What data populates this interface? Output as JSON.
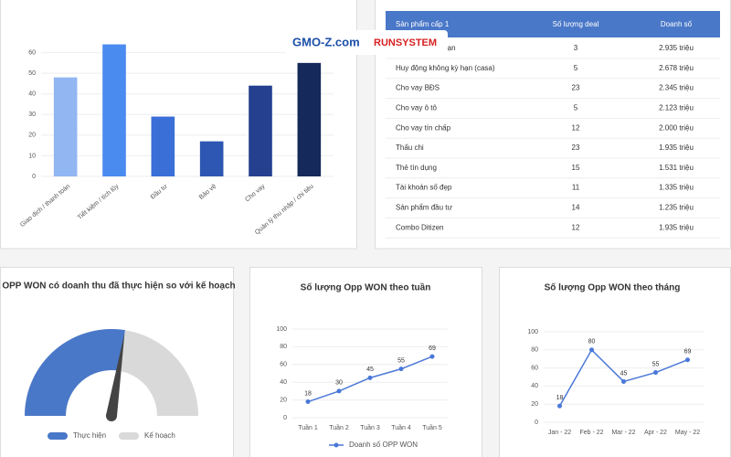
{
  "chart_data": [
    {
      "type": "bar",
      "categories": [
        "Giao dịch / thanh toán",
        "Tiết kiệm / tích lũy",
        "Đầu tư",
        "Bảo vệ",
        "Cho vay",
        "Quản lý thu nhập / chi tiêu"
      ],
      "values": [
        48,
        64,
        29,
        17,
        44,
        55
      ],
      "colors": [
        "#92b6f2",
        "#4a8bf0",
        "#3a6fd8",
        "#2d57b2",
        "#24408f",
        "#15295a"
      ],
      "ylim": [
        0,
        70
      ],
      "yticks": [
        0,
        10,
        20,
        30,
        40,
        50,
        60
      ],
      "grid": true
    },
    {
      "type": "gauge",
      "title": "OPP WON có doanh thu đã thực hiện so với kế hoạch",
      "series": [
        {
          "name": "Thực hiện",
          "color": "#4a78c8",
          "value": 55
        },
        {
          "name": "Kế hoạch",
          "color": "#d9d9d9",
          "value": 100
        }
      ],
      "needle_color": "#444444",
      "legend": "bottom"
    },
    {
      "type": "line",
      "title": "Số lượng Opp WON theo tuần",
      "categories": [
        "Tuần 1",
        "Tuần 2",
        "Tuần 3",
        "Tuần 4",
        "Tuần 5"
      ],
      "series": [
        {
          "name": "Doanh số OPP WON",
          "color": "#4a78d8",
          "values": [
            18,
            30,
            45,
            55,
            69
          ]
        }
      ],
      "ylim": [
        0,
        100
      ],
      "yticks": [
        0,
        20,
        40,
        60,
        80,
        100
      ],
      "grid": true,
      "legend": "bottom",
      "data_labels": true
    },
    {
      "type": "line",
      "title": "Số lượng Opp WON theo tháng",
      "categories": [
        "Jan - 22",
        "Feb - 22",
        "Mar - 22",
        "Apr - 22",
        "May - 22"
      ],
      "series": [
        {
          "color": "#4a78d8",
          "values": [
            18,
            80,
            45,
            55,
            69
          ]
        }
      ],
      "ylim": [
        0,
        100
      ],
      "yticks": [
        0,
        20,
        40,
        60,
        80,
        100
      ],
      "grid": true,
      "data_labels": true
    }
  ],
  "table": {
    "header": [
      "Sản phẩm cấp 1",
      "Số lượng deal",
      "Doanh số"
    ],
    "rows": [
      [
        "Tiền gửi có kỳ hạn",
        3,
        "2.935 triệu"
      ],
      [
        "Huy động không kỳ hạn (casa)",
        5,
        "2.678 triệu"
      ],
      [
        "Cho vay BĐS",
        23,
        "2.345 triệu"
      ],
      [
        "Cho vay ô tô",
        5,
        "2.123 triệu"
      ],
      [
        "Cho vay tín chấp",
        12,
        "2.000 triệu"
      ],
      [
        "Thấu chi",
        23,
        "1.935 triệu"
      ],
      [
        "Thẻ tín dụng",
        15,
        "1.531 triệu"
      ],
      [
        "Tài khoản số đẹp",
        11,
        "1.335 triệu"
      ],
      [
        "Sản phẩm đầu tư",
        14,
        "1.235 triệu"
      ],
      [
        "Combo Ditizen",
        12,
        "1.935 triệu"
      ]
    ]
  },
  "watermark": [
    "GMO-Z.com",
    "RUNSYSTEM"
  ]
}
